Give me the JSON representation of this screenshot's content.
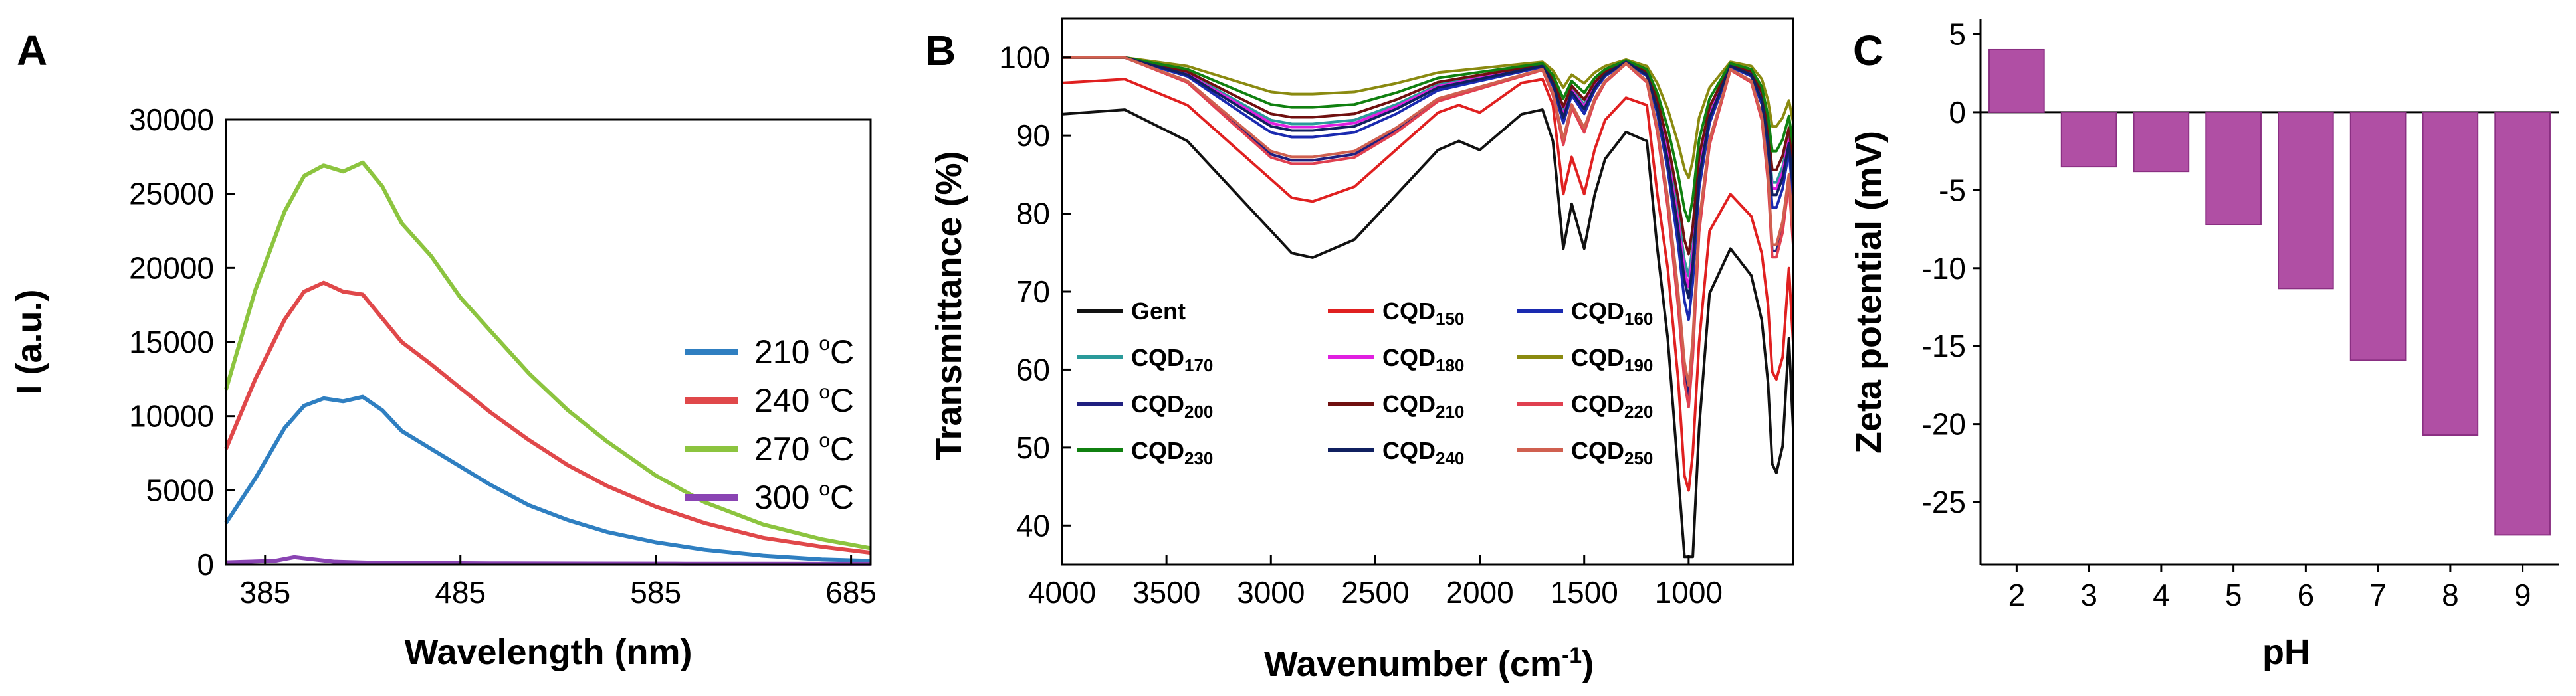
{
  "chart_data": [
    {
      "panel": "A",
      "type": "line",
      "title": "",
      "xlabel": "Wavelength (nm)",
      "ylabel": "I (a.u.)",
      "xlim": [
        365,
        695
      ],
      "ylim": [
        0,
        30000
      ],
      "xticks": [
        385,
        485,
        585,
        685
      ],
      "xtick_labels": [
        "385",
        "485",
        "585",
        "685"
      ],
      "yticks": [
        0,
        5000,
        10000,
        15000,
        20000,
        25000,
        30000
      ],
      "ytick_labels": [
        "0",
        "5000",
        "10000",
        "15000",
        "20000",
        "25000",
        "30000"
      ],
      "legend_position": "right",
      "series": [
        {
          "name": "210 °C",
          "label": "210 ",
          "unit_sup": "o",
          "unit": "C",
          "color": "#2f7fc1",
          "x": [
            365,
            380,
            395,
            405,
            415,
            425,
            435,
            445,
            455,
            470,
            485,
            500,
            520,
            540,
            560,
            585,
            610,
            640,
            670,
            695
          ],
          "y": [
            2800,
            5800,
            9200,
            10700,
            11200,
            11000,
            11300,
            10400,
            9000,
            7800,
            6600,
            5400,
            4000,
            3000,
            2200,
            1500,
            1000,
            600,
            350,
            250
          ]
        },
        {
          "name": "240 °C",
          "label": "240 ",
          "unit_sup": "o",
          "unit": "C",
          "color": "#e0484a",
          "x": [
            365,
            380,
            395,
            405,
            415,
            425,
            435,
            445,
            455,
            470,
            485,
            500,
            520,
            540,
            560,
            585,
            610,
            640,
            670,
            695
          ],
          "y": [
            7800,
            12500,
            16500,
            18400,
            19000,
            18400,
            18200,
            16600,
            15000,
            13500,
            11900,
            10300,
            8400,
            6700,
            5300,
            3900,
            2800,
            1800,
            1200,
            800
          ]
        },
        {
          "name": "270 °C",
          "label": "270 ",
          "unit_sup": "o",
          "unit": "C",
          "color": "#8cc43f",
          "x": [
            365,
            380,
            395,
            405,
            415,
            425,
            435,
            445,
            455,
            470,
            485,
            500,
            520,
            540,
            560,
            585,
            610,
            640,
            670,
            695
          ],
          "y": [
            11800,
            18500,
            23800,
            26200,
            26900,
            26500,
            27100,
            25500,
            23000,
            20800,
            18000,
            15800,
            12900,
            10400,
            8300,
            6000,
            4200,
            2700,
            1700,
            1100
          ]
        },
        {
          "name": "300 °C",
          "label": "300 ",
          "unit_sup": "o",
          "unit": "C",
          "color": "#8a44b3",
          "x": [
            365,
            390,
            400,
            410,
            420,
            440,
            500,
            600,
            695
          ],
          "y": [
            150,
            250,
            500,
            350,
            200,
            120,
            80,
            60,
            50
          ]
        }
      ]
    },
    {
      "panel": "B",
      "type": "line",
      "title": "",
      "xlabel": "Wavenumber (cm",
      "xlabel_sup": "-1",
      "xlabel_end": ")",
      "ylabel": "Transmittance (%)",
      "xlim": [
        4000,
        500
      ],
      "ylim": [
        35,
        105
      ],
      "xticks": [
        4000,
        3500,
        3000,
        2500,
        2000,
        1500,
        1000
      ],
      "xtick_labels": [
        "4000",
        "3500",
        "3000",
        "2500",
        "2000",
        "1500",
        "1000"
      ],
      "yticks": [
        40,
        50,
        60,
        70,
        80,
        90,
        100
      ],
      "ytick_labels": [
        "40",
        "50",
        "60",
        "70",
        "80",
        "90",
        "100"
      ],
      "legend_position": "bottom-left",
      "legend": [
        {
          "base": "Gent",
          "sub": "",
          "color": "#111111"
        },
        {
          "base": "CQD",
          "sub": "150",
          "color": "#e02020"
        },
        {
          "base": "CQD",
          "sub": "160",
          "color": "#1a2ab0"
        },
        {
          "base": "CQD",
          "sub": "170",
          "color": "#2a9a9a"
        },
        {
          "base": "CQD",
          "sub": "180",
          "color": "#e020e0"
        },
        {
          "base": "CQD",
          "sub": "190",
          "color": "#8a8a10"
        },
        {
          "base": "CQD",
          "sub": "200",
          "color": "#202080"
        },
        {
          "base": "CQD",
          "sub": "210",
          "color": "#701010"
        },
        {
          "base": "CQD",
          "sub": "220",
          "color": "#e04050"
        },
        {
          "base": "CQD",
          "sub": "230",
          "color": "#108010"
        },
        {
          "base": "CQD",
          "sub": "240",
          "color": "#102060"
        },
        {
          "base": "CQD",
          "sub": "250",
          "color": "#d06050"
        }
      ],
      "x_grid": [
        4000,
        3700,
        3400,
        3200,
        3000,
        2900,
        2800,
        2600,
        2400,
        2200,
        2100,
        2000,
        1800,
        1700,
        1650,
        1600,
        1560,
        1500,
        1450,
        1400,
        1300,
        1200,
        1150,
        1100,
        1050,
        1020,
        1000,
        980,
        950,
        900,
        800,
        700,
        650,
        620,
        600,
        580,
        550,
        520,
        500
      ],
      "base_shapes": {
        "strong": [
          95,
          95.5,
          92,
          87,
          82,
          79.5,
          79,
          81,
          86,
          91,
          92,
          91,
          95,
          95.5,
          92,
          80,
          85,
          80,
          86,
          90,
          93,
          92,
          80,
          70,
          55,
          42,
          40,
          45,
          60,
          75,
          80,
          77,
          72,
          65,
          56,
          55,
          58,
          70,
          60
        ],
        "weak": [
          100,
          100,
          98,
          95,
          92,
          91.5,
          91.5,
          92,
          94,
          96.5,
          97,
          97.5,
          98.5,
          99,
          97,
          93,
          96,
          94,
          96.5,
          98,
          99.5,
          98,
          94,
          88,
          80,
          74,
          72,
          76,
          86,
          93,
          99,
          98,
          95,
          90,
          84,
          84,
          86,
          90,
          85
        ]
      },
      "series_params": [
        {
          "name": "Gent",
          "color": "#111111",
          "shape": "strong",
          "offset": -1.5,
          "dip_scale": 1.15
        },
        {
          "name": "CQD150",
          "color": "#e02020",
          "shape": "strong",
          "offset": 1.5,
          "dip_scale": 0.95
        },
        {
          "name": "CQD160",
          "color": "#1a2ab0",
          "shape": "weak",
          "offset": 0,
          "dip_scale": 1.2
        },
        {
          "name": "CQD170",
          "color": "#2a9a9a",
          "shape": "weak",
          "offset": 0,
          "dip_scale": 1.0
        },
        {
          "name": "CQD180",
          "color": "#e020e0",
          "shape": "weak",
          "offset": 0,
          "dip_scale": 1.05
        },
        {
          "name": "CQD190",
          "color": "#8a8a10",
          "shape": "weak",
          "offset": 0,
          "dip_scale": 0.55
        },
        {
          "name": "CQD200",
          "color": "#202080",
          "shape": "weak",
          "offset": 0,
          "dip_scale": 1.55
        },
        {
          "name": "CQD210",
          "color": "#701010",
          "shape": "weak",
          "offset": 0,
          "dip_scale": 0.9
        },
        {
          "name": "CQD220",
          "color": "#e04050",
          "shape": "weak",
          "offset": 0,
          "dip_scale": 1.6
        },
        {
          "name": "CQD230",
          "color": "#108010",
          "shape": "weak",
          "offset": 0,
          "dip_scale": 0.75
        },
        {
          "name": "CQD240",
          "color": "#102060",
          "shape": "weak",
          "offset": 0,
          "dip_scale": 1.1
        },
        {
          "name": "CQD250",
          "color": "#d06050",
          "shape": "weak",
          "offset": 0,
          "dip_scale": 1.5
        }
      ]
    },
    {
      "panel": "C",
      "type": "bar",
      "title": "",
      "xlabel": "pH",
      "ylabel": "Zeta potential (mV)",
      "categories": [
        "2",
        "3",
        "4",
        "5",
        "6",
        "7",
        "8",
        "9"
      ],
      "values": [
        4.0,
        -3.5,
        -3.8,
        -7.2,
        -11.3,
        -15.9,
        -20.7,
        -27.1
      ],
      "ylim": [
        -29,
        6
      ],
      "yticks": [
        5,
        0,
        -5,
        -10,
        -15,
        -20,
        -25
      ],
      "ytick_labels": [
        "5",
        "0",
        "-5",
        "-10",
        "-15",
        "-20",
        "-25"
      ],
      "bar_color": "#b04fa4",
      "bar_edge_color": "#8a2f82"
    }
  ]
}
